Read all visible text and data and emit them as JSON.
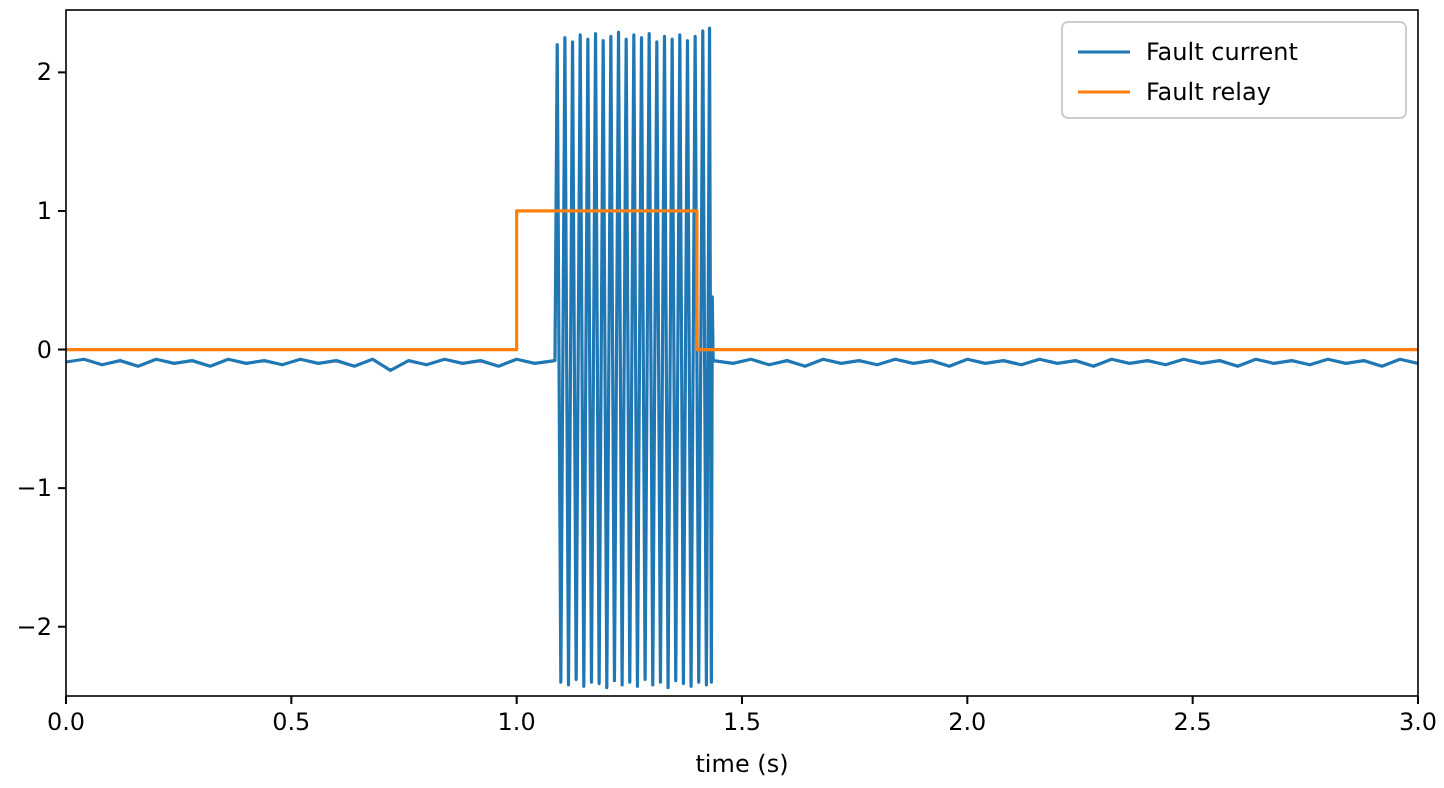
{
  "chart_data": {
    "type": "line",
    "xlabel": "time (s)",
    "xlim": [
      0,
      3
    ],
    "ylim": [
      -2.5,
      2.45
    ],
    "xticks": [
      {
        "value": 0,
        "label": "0.0"
      },
      {
        "value": 0.5,
        "label": "0.5"
      },
      {
        "value": 1,
        "label": "1.0"
      },
      {
        "value": 1.5,
        "label": "1.5"
      },
      {
        "value": 2,
        "label": "2.0"
      },
      {
        "value": 2.5,
        "label": "2.5"
      },
      {
        "value": 3,
        "label": "3.0"
      }
    ],
    "yticks": [
      {
        "value": -2,
        "label": "−2"
      },
      {
        "value": -1,
        "label": "−1"
      },
      0,
      1,
      2
    ],
    "grid": false,
    "legend": "top right",
    "line_style": "solid",
    "marker": "none",
    "series": [
      {
        "name": "Fault current",
        "color": "#1f77b4",
        "x": [
          0,
          0.04,
          0.08,
          0.12,
          0.16,
          0.2,
          0.24,
          0.28,
          0.32,
          0.36,
          0.4,
          0.44,
          0.48,
          0.52,
          0.56,
          0.6,
          0.64,
          0.68,
          0.72,
          0.76,
          0.8,
          0.84,
          0.88,
          0.92,
          0.96,
          1,
          1.04,
          1.085,
          1.09,
          1.098,
          1.107,
          1.115,
          1.124,
          1.132,
          1.141,
          1.149,
          1.158,
          1.166,
          1.175,
          1.183,
          1.192,
          1.2,
          1.209,
          1.217,
          1.226,
          1.234,
          1.243,
          1.251,
          1.26,
          1.268,
          1.277,
          1.285,
          1.294,
          1.302,
          1.311,
          1.319,
          1.328,
          1.336,
          1.345,
          1.353,
          1.362,
          1.37,
          1.379,
          1.387,
          1.396,
          1.404,
          1.413,
          1.421,
          1.428,
          1.432,
          1.434,
          1.436,
          1.48,
          1.52,
          1.56,
          1.6,
          1.64,
          1.68,
          1.72,
          1.76,
          1.8,
          1.84,
          1.88,
          1.92,
          1.96,
          2,
          2.04,
          2.08,
          2.12,
          2.16,
          2.2,
          2.24,
          2.28,
          2.32,
          2.36,
          2.4,
          2.44,
          2.48,
          2.52,
          2.56,
          2.6,
          2.64,
          2.68,
          2.72,
          2.76,
          2.8,
          2.84,
          2.88,
          2.92,
          2.96,
          3
        ],
        "values": [
          -0.09,
          -0.07,
          -0.11,
          -0.08,
          -0.12,
          -0.07,
          -0.1,
          -0.08,
          -0.12,
          -0.07,
          -0.1,
          -0.08,
          -0.11,
          -0.07,
          -0.1,
          -0.08,
          -0.12,
          -0.07,
          -0.15,
          -0.08,
          -0.11,
          -0.07,
          -0.1,
          -0.08,
          -0.12,
          -0.07,
          -0.1,
          -0.08,
          2.2,
          -2.4,
          2.25,
          -2.42,
          2.22,
          -2.38,
          2.27,
          -2.43,
          2.24,
          -2.4,
          2.28,
          -2.41,
          2.23,
          -2.44,
          2.26,
          -2.39,
          2.29,
          -2.42,
          2.24,
          -2.4,
          2.27,
          -2.43,
          2.25,
          -2.38,
          2.28,
          -2.42,
          2.22,
          -2.4,
          2.26,
          -2.44,
          2.24,
          -2.39,
          2.27,
          -2.41,
          2.23,
          -2.43,
          2.26,
          -2.4,
          2.3,
          -2.42,
          2.32,
          -2.4,
          0.38,
          -0.08,
          -0.1,
          -0.07,
          -0.11,
          -0.08,
          -0.12,
          -0.07,
          -0.1,
          -0.08,
          -0.11,
          -0.07,
          -0.1,
          -0.08,
          -0.12,
          -0.07,
          -0.1,
          -0.08,
          -0.11,
          -0.07,
          -0.1,
          -0.08,
          -0.12,
          -0.07,
          -0.1,
          -0.08,
          -0.11,
          -0.07,
          -0.1,
          -0.08,
          -0.12,
          -0.07,
          -0.1,
          -0.08,
          -0.11,
          -0.07,
          -0.1,
          -0.08,
          -0.12,
          -0.07,
          -0.1
        ]
      },
      {
        "name": "Fault relay",
        "color": "#ff7f0e",
        "type": "step",
        "x": [
          0,
          1,
          1.4,
          3
        ],
        "values": [
          0,
          1,
          0,
          0
        ]
      }
    ]
  }
}
